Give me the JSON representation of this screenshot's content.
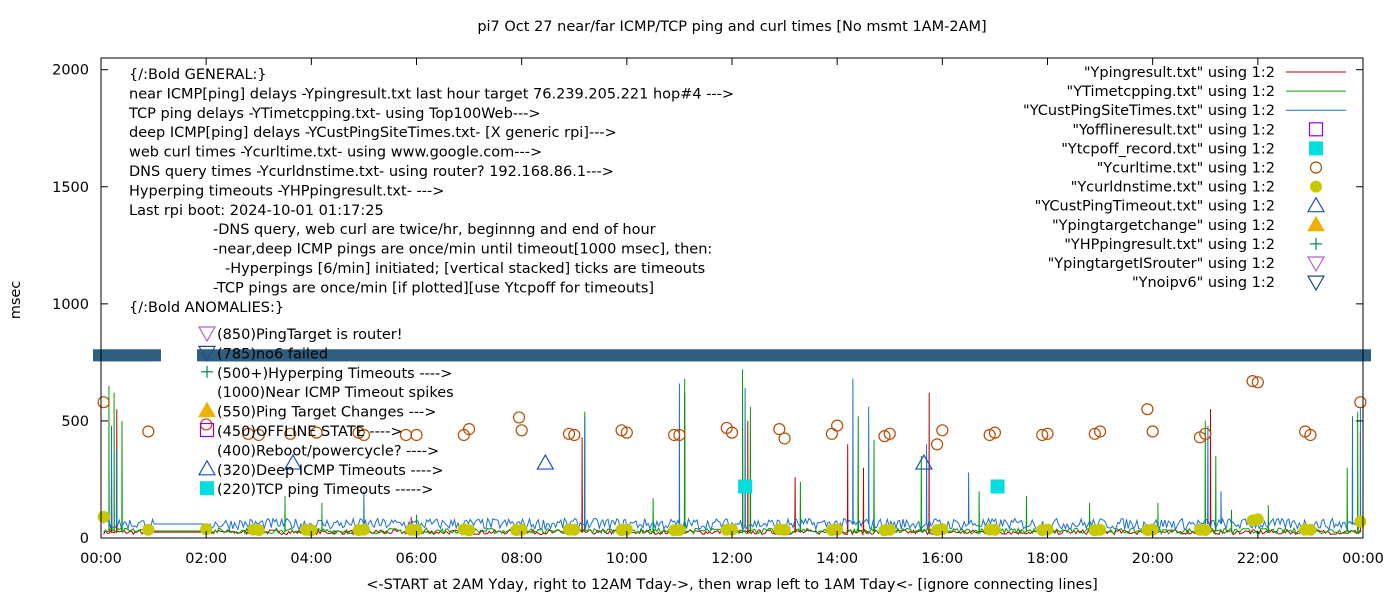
{
  "title": "pi7 Oct 27  near/far ICMP/TCP ping and curl times [No msmt 1AM-2AM]",
  "chart_data": {
    "type": "line",
    "title": "pi7 Oct 27  near/far ICMP/TCP ping and curl times [No msmt 1AM-2AM]",
    "xlabel": "<-START at 2AM Yday, right to 12AM Tday->, then wrap left to 1AM Tday<- [ignore connecting lines]",
    "ylabel": "msec",
    "xlim": [
      0,
      24
    ],
    "ylim": [
      0,
      2050
    ],
    "x_ticks": [
      "00:00",
      "02:00",
      "04:00",
      "06:00",
      "08:00",
      "10:00",
      "12:00",
      "14:00",
      "16:00",
      "18:00",
      "20:00",
      "22:00",
      "00:00"
    ],
    "y_ticks": [
      "0",
      "500",
      "1000",
      "1500",
      "2000"
    ],
    "grid": false,
    "legend_position": "top-right",
    "band_label_threshold": 780,
    "legend": [
      {
        "label": "\"Ypingresult.txt\" using 1:2",
        "style": "line",
        "color": "#c00000"
      },
      {
        "label": "\"YTimetcpping.txt\" using 1:2",
        "style": "line",
        "color": "#00a000"
      },
      {
        "label": "\"YCustPingSiteTimes.txt\" using 1:2",
        "style": "line",
        "color": "#1a70d0"
      },
      {
        "label": "\"Yofflineresult.txt\" using 1:2",
        "style": "open-square",
        "color": "#9400d3"
      },
      {
        "label": "\"Ytcpoff_record.txt\" using 1:2",
        "style": "filled-square",
        "color": "#00dede"
      },
      {
        "label": "\"Ycurltime.txt\" using 1:2",
        "style": "open-circle",
        "color": "#b84a00"
      },
      {
        "label": "\"Ycurldnstime.txt\" using 1:2",
        "style": "filled-circle",
        "color": "#c8c800"
      },
      {
        "label": "\"YCustPingTimeout.txt\" using 1:2",
        "style": "open-triangle-up",
        "color": "#1f50c0"
      },
      {
        "label": "\"Ypingtargetchange\" using 1:2",
        "style": "filled-triangle-up",
        "color": "#f0b000"
      },
      {
        "label": "\"YHPpingresult.txt\" using 1:2",
        "style": "plus",
        "color": "#008060"
      },
      {
        "label": "\"YpingtargetISrouter\" using 1:2",
        "style": "open-triangle-down",
        "color": "#b060d0"
      },
      {
        "label": "\"Ynoipv6\" using 1:2",
        "style": "open-triangle-down",
        "color": "#204a90"
      }
    ],
    "notes": [
      "{/:Bold GENERAL:}",
      "near ICMP[ping] delays -Ypingresult.txt last hour target 76.239.205.221 hop#4 --->",
      "TCP ping delays -YTimetcpping.txt- using Top100Web--->",
      "deep ICMP[ping] delays -YCustPingSiteTimes.txt- [X generic rpi]--->",
      "web curl times -Ycurltime.txt- using www.google.com--->",
      "DNS query times -Ycurldnstime.txt- using router? 192.168.86.1--->",
      "Hyperping timeouts -YHPpingresult.txt- --->",
      "Last rpi boot: 2024-10-01 01:17:25",
      "-DNS query, web curl are twice/hr, beginnng and end of hour",
      "-near,deep ICMP pings are once/min until timeout[1000 msec], then:",
      "-Hyperpings [6/min] initiated; [vertical stacked] ticks are timeouts",
      "-TCP pings are once/min [if plotted][use Ytcpoff for timeouts]",
      "{/:Bold ANOMALIES:}"
    ],
    "anomaly_keys": [
      {
        "label": "(850)PingTarget is router!",
        "style": "open-triangle-down",
        "color": "#b060d0"
      },
      {
        "label": "(785)no6 failed",
        "style": "open-triangle-down",
        "color": "#204a90"
      },
      {
        "label": "(500+)Hyperping Timeouts ---->",
        "style": "plus",
        "color": "#008060"
      },
      {
        "label": "(1000)Near ICMP Timeout spikes",
        "style": "none",
        "color": "#c00000"
      },
      {
        "label": "(550)Ping Target Changes --->",
        "style": "filled-triangle-up",
        "color": "#f0b000"
      },
      {
        "label": "(450)OFFLINE STATE ---->",
        "style": "open-square",
        "color": "#9400d3"
      },
      {
        "label": "(400)Reboot/powercycle? ---->",
        "style": "none",
        "color": "#000000"
      },
      {
        "label": "(320)Deep ICMP Timeouts ---->",
        "style": "open-triangle-up",
        "color": "#1f50c0"
      },
      {
        "label": "(220)TCP ping Timeouts ----->",
        "style": "filled-square",
        "color": "#00dede"
      }
    ],
    "series": [
      {
        "name": "\"Ycurltime.txt\" using 1:2",
        "marker": "open-circle",
        "color": "#b84a00",
        "x": [
          0.05,
          0.9,
          2.0,
          2.8,
          3.0,
          3.6,
          4.1,
          4.9,
          5.0,
          5.8,
          6.0,
          6.9,
          7.0,
          7.95,
          8.0,
          8.9,
          9.0,
          9.9,
          10.0,
          10.9,
          11.0,
          11.9,
          12.0,
          12.9,
          13.0,
          13.9,
          14.0,
          14.9,
          15.0,
          15.9,
          16.0,
          16.9,
          17.0,
          17.9,
          18.0,
          18.9,
          19.0,
          19.9,
          20.0,
          20.9,
          21.0,
          21.9,
          22.0,
          22.9,
          23.0,
          23.95
        ],
        "y": [
          580,
          455,
          485,
          445,
          440,
          445,
          450,
          450,
          440,
          440,
          440,
          440,
          465,
          515,
          460,
          445,
          440,
          460,
          450,
          440,
          440,
          470,
          450,
          465,
          425,
          445,
          480,
          435,
          445,
          400,
          460,
          440,
          450,
          440,
          445,
          445,
          455,
          550,
          455,
          430,
          445,
          670,
          665,
          455,
          440,
          580
        ]
      },
      {
        "name": "\"Ycurldnstime.txt\" using 1:2",
        "marker": "filled-circle",
        "color": "#c8c800",
        "x": [
          0.05,
          0.9,
          2.0,
          2.9,
          3.0,
          3.9,
          4.0,
          4.9,
          5.0,
          5.9,
          6.0,
          6.9,
          7.0,
          7.9,
          8.0,
          8.9,
          9.0,
          9.9,
          10.0,
          10.9,
          11.0,
          11.9,
          12.0,
          12.9,
          13.0,
          13.9,
          14.0,
          14.9,
          15.0,
          15.9,
          16.0,
          16.9,
          17.0,
          17.9,
          18.0,
          18.9,
          19.0,
          19.9,
          20.0,
          20.9,
          21.0,
          21.9,
          22.0,
          22.9,
          23.0,
          23.95
        ],
        "y": [
          90,
          35,
          38,
          36,
          34,
          35,
          33,
          34,
          36,
          35,
          34,
          37,
          33,
          34,
          35,
          36,
          35,
          34,
          36,
          33,
          34,
          35,
          36,
          37,
          35,
          34,
          36,
          33,
          35,
          34,
          38,
          36,
          35,
          34,
          36,
          33,
          35,
          34,
          36,
          35,
          34,
          75,
          80,
          36,
          35,
          70
        ]
      },
      {
        "name": "\"YCustPingTimeout.txt\" using 1:2",
        "marker": "open-triangle-up",
        "color": "#1f50c0",
        "x": [
          3.65,
          8.45,
          15.65
        ],
        "y": [
          320,
          320,
          320
        ]
      },
      {
        "name": "\"Ytcpoff_record.txt\" using 1:2",
        "marker": "filled-square",
        "color": "#00dede",
        "x": [
          12.25,
          17.05
        ],
        "y": [
          220,
          220
        ]
      },
      {
        "name": "\"Ypingresult.txt\" using 1:2",
        "line": true,
        "color": "#c00000",
        "base": 25,
        "spikes": [
          [
            0.2,
            300
          ],
          [
            0.3,
            550
          ],
          [
            5.9,
            90
          ],
          [
            9.15,
            430
          ],
          [
            11.1,
            620
          ],
          [
            12.2,
            600
          ],
          [
            12.3,
            500
          ],
          [
            13.2,
            260
          ],
          [
            14.2,
            400
          ],
          [
            14.5,
            300
          ],
          [
            15.75,
            620
          ],
          [
            21.1,
            550
          ],
          [
            23.95,
            450
          ]
        ]
      },
      {
        "name": "\"YTimetcpping.txt\" using 1:2",
        "line": true,
        "color": "#00a000",
        "base": 30,
        "spikes": [
          [
            0.15,
            650
          ],
          [
            0.25,
            620
          ],
          [
            0.4,
            500
          ],
          [
            3.5,
            180
          ],
          [
            4.2,
            150
          ],
          [
            6.0,
            100
          ],
          [
            9.2,
            540
          ],
          [
            10.5,
            170
          ],
          [
            11.1,
            680
          ],
          [
            12.2,
            720
          ],
          [
            12.35,
            560
          ],
          [
            13.3,
            240
          ],
          [
            14.4,
            520
          ],
          [
            14.7,
            420
          ],
          [
            15.6,
            350
          ],
          [
            16.7,
            200
          ],
          [
            17.6,
            180
          ],
          [
            18.8,
            150
          ],
          [
            20.1,
            150
          ],
          [
            21.0,
            500
          ],
          [
            21.2,
            350
          ],
          [
            21.5,
            120
          ],
          [
            22.2,
            140
          ],
          [
            23.7,
            300
          ],
          [
            23.9,
            540
          ]
        ]
      },
      {
        "name": "\"YCustPingSiteTimes.txt\" using 1:2",
        "line": true,
        "color": "#1a70d0",
        "base": 60,
        "spikes": [
          [
            0.2,
            480
          ],
          [
            0.3,
            380
          ],
          [
            5.0,
            200
          ],
          [
            9.2,
            520
          ],
          [
            11.0,
            660
          ],
          [
            12.25,
            640
          ],
          [
            14.3,
            680
          ],
          [
            14.6,
            560
          ],
          [
            15.7,
            400
          ],
          [
            16.5,
            280
          ],
          [
            21.05,
            480
          ],
          [
            21.3,
            200
          ],
          [
            23.8,
            520
          ],
          [
            23.95,
            560
          ]
        ]
      }
    ]
  }
}
